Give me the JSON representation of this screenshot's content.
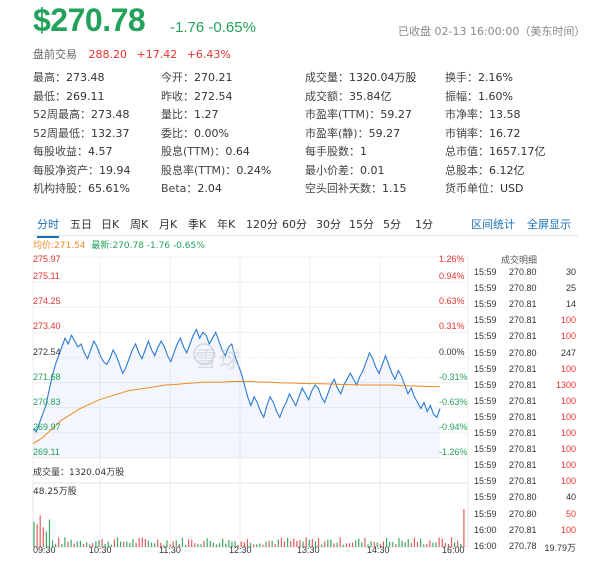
{
  "quote": {
    "price": "$270.78",
    "change": "-1.76",
    "change_pct": "-0.65%",
    "status": "已收盘 02-13 16:00:00（美东时间）"
  },
  "premarket": {
    "label": "盘前交易",
    "price": "288.20",
    "change": "+17.42",
    "change_pct": "+6.43%"
  },
  "stats": [
    [
      {
        "k": "最高：",
        "v": "273.48",
        "c": "red"
      },
      {
        "k": "今开：",
        "v": "270.21",
        "c": "green"
      },
      {
        "k": "成交量：",
        "v": "1320.04万股",
        "c": ""
      },
      {
        "k": "换手：",
        "v": "2.16%",
        "c": ""
      }
    ],
    [
      {
        "k": "最低：",
        "v": "269.11",
        "c": "green"
      },
      {
        "k": "昨收：",
        "v": "272.54",
        "c": ""
      },
      {
        "k": "成交额：",
        "v": "35.84亿",
        "c": ""
      },
      {
        "k": "振幅：",
        "v": "1.60%",
        "c": ""
      }
    ],
    [
      {
        "k": "52周最高：",
        "v": "273.48",
        "c": ""
      },
      {
        "k": "量比：",
        "v": "1.27",
        "c": "red"
      },
      {
        "k": "市盈率(TTM)：",
        "v": "59.27",
        "c": ""
      },
      {
        "k": "市净率：",
        "v": "13.58",
        "c": ""
      }
    ],
    [
      {
        "k": "52周最低：",
        "v": "132.37",
        "c": ""
      },
      {
        "k": "委比：",
        "v": "0.00%",
        "c": ""
      },
      {
        "k": "市盈率(静)：",
        "v": "59.27",
        "c": ""
      },
      {
        "k": "市销率：",
        "v": "16.72",
        "c": ""
      }
    ],
    [
      {
        "k": "每股收益：",
        "v": "4.57",
        "c": ""
      },
      {
        "k": "股息(TTM)：",
        "v": "0.64",
        "c": ""
      },
      {
        "k": "每手股数：",
        "v": "1",
        "c": ""
      },
      {
        "k": "总市值：",
        "v": "1657.17亿",
        "c": ""
      }
    ],
    [
      {
        "k": "每股净资产：",
        "v": "19.94",
        "c": ""
      },
      {
        "k": "股息率(TTM)：",
        "v": "0.24%",
        "c": ""
      },
      {
        "k": "最小价差：",
        "v": "0.01",
        "c": ""
      },
      {
        "k": "总股本：",
        "v": "6.12亿",
        "c": ""
      }
    ],
    [
      {
        "k": "机构持股：",
        "v": "65.61%",
        "c": ""
      },
      {
        "k": "Beta：",
        "v": "2.04",
        "c": ""
      },
      {
        "k": "空头回补天数：",
        "v": "1.15",
        "c": ""
      },
      {
        "k": "货币单位：",
        "v": "USD",
        "c": ""
      }
    ]
  ],
  "tabs": [
    "分时",
    "五日",
    "日K",
    "周K",
    "月K",
    "季K",
    "年K",
    "120分",
    "60分",
    "30分",
    "15分",
    "5分",
    "1分"
  ],
  "tab_actions": [
    "区间统计",
    "全屏显示"
  ],
  "legend": {
    "avg": "均价:271.54",
    "latest": "最新:270.78 -1.76 -0.65%"
  },
  "chart_data": {
    "type": "line",
    "y_ticks": [
      "275.97",
      "275.11",
      "274.25",
      "273.40",
      "272.54",
      "271.68",
      "270.83",
      "269.97",
      "269.11"
    ],
    "pct_ticks": [
      "1.26%",
      "0.94%",
      "0.63%",
      "0.31%",
      "0.00%",
      "-0.31%",
      "-0.63%",
      "-0.94%",
      "-1.26%"
    ],
    "ylim": [
      269.11,
      275.97
    ],
    "prev_close": 272.54,
    "x_ticks": [
      "09:30",
      "10:30",
      "11:30",
      "12:30",
      "13:30",
      "14:30",
      "16:00"
    ],
    "series": [
      {
        "values": [
          270.1,
          270.0,
          270.3,
          270.6,
          270.9,
          271.4,
          271.9,
          272.3,
          272.6,
          272.9,
          273.2,
          273.0,
          273.3,
          273.1,
          272.9,
          273.0,
          272.7,
          272.5,
          272.8,
          273.1,
          272.9,
          272.6,
          272.4,
          272.3,
          272.5,
          272.8,
          272.6,
          272.3,
          272.0,
          272.2,
          272.5,
          272.8,
          273.0,
          272.7,
          272.5,
          272.8,
          273.1,
          272.8,
          272.6,
          272.9,
          273.1,
          272.9,
          272.6,
          272.4,
          272.7,
          273.0,
          273.2,
          272.9,
          272.7,
          273.0,
          273.3,
          273.5,
          273.2,
          273.4,
          273.3,
          273.0,
          273.2,
          273.4,
          273.1,
          272.8,
          272.6,
          272.9,
          273.0,
          272.6,
          272.3,
          272.0,
          271.6,
          271.2,
          270.9,
          271.2,
          271.0,
          270.7,
          270.5,
          270.9,
          271.2,
          271.0,
          270.7,
          270.5,
          270.8,
          271.0,
          271.3,
          271.1,
          270.9,
          271.2,
          271.5,
          271.3,
          271.1,
          271.4,
          271.6,
          271.5,
          271.2,
          271.0,
          271.3,
          271.6,
          271.8,
          271.5,
          271.3,
          271.6,
          271.8,
          272.0,
          271.8,
          271.6,
          271.9,
          272.1,
          272.4,
          272.7,
          272.5,
          272.2,
          272.0,
          272.3,
          272.6,
          272.3,
          272.0,
          271.8,
          272.1,
          271.9,
          271.6,
          271.3,
          271.5,
          271.2,
          271.0,
          270.8,
          271.0,
          270.7,
          270.9,
          270.6,
          270.5,
          270.8
        ],
        "color": "#2b7bd6"
      },
      {
        "values": [
          269.6,
          269.8,
          270.1,
          270.4,
          270.6,
          270.8,
          270.95,
          271.1,
          271.2,
          271.3,
          271.4,
          271.45,
          271.5,
          271.55,
          271.6,
          271.62,
          271.65,
          271.67,
          271.7,
          271.7,
          271.7,
          271.72,
          271.72,
          271.72,
          271.7,
          271.7,
          271.68,
          271.67,
          271.66,
          271.65,
          271.65,
          271.64,
          271.63,
          271.62,
          271.61,
          271.6,
          271.6,
          271.6,
          271.6,
          271.58,
          271.57,
          271.56,
          271.55,
          271.54
        ],
        "color": "#f08a24"
      }
    ],
    "volume_label": "成交量：1320.04万股",
    "volume_max_label": "48.25万股"
  },
  "trades": {
    "title": "成交明细",
    "rows": [
      {
        "t": "15:59",
        "p": "270.80",
        "v": "30",
        "c": ""
      },
      {
        "t": "15:59",
        "p": "270.80",
        "v": "25",
        "c": ""
      },
      {
        "t": "15:59",
        "p": "270.81",
        "v": "14",
        "c": ""
      },
      {
        "t": "15:59",
        "p": "270.81",
        "v": "100",
        "c": "red"
      },
      {
        "t": "15:59",
        "p": "270.81",
        "v": "100",
        "c": "red"
      },
      {
        "t": "15:59",
        "p": "270.80",
        "v": "247",
        "c": ""
      },
      {
        "t": "15:59",
        "p": "270.81",
        "v": "100",
        "c": "red"
      },
      {
        "t": "15:59",
        "p": "270.81",
        "v": "1300",
        "c": "red"
      },
      {
        "t": "15:59",
        "p": "270.81",
        "v": "100",
        "c": "red"
      },
      {
        "t": "15:59",
        "p": "270.81",
        "v": "100",
        "c": "red"
      },
      {
        "t": "15:59",
        "p": "270.81",
        "v": "100",
        "c": "red"
      },
      {
        "t": "15:59",
        "p": "270.81",
        "v": "100",
        "c": "red"
      },
      {
        "t": "15:59",
        "p": "270.81",
        "v": "100",
        "c": "red"
      },
      {
        "t": "15:59",
        "p": "270.81",
        "v": "100",
        "c": "red"
      },
      {
        "t": "15:59",
        "p": "270.80",
        "v": "40",
        "c": ""
      },
      {
        "t": "15:59",
        "p": "270.80",
        "v": "50",
        "c": "red"
      },
      {
        "t": "16:00",
        "p": "270.81",
        "v": "100",
        "c": "red"
      },
      {
        "t": "16:00",
        "p": "270.78",
        "v": "19.79万",
        "c": ""
      }
    ]
  },
  "watermark": "雪球"
}
